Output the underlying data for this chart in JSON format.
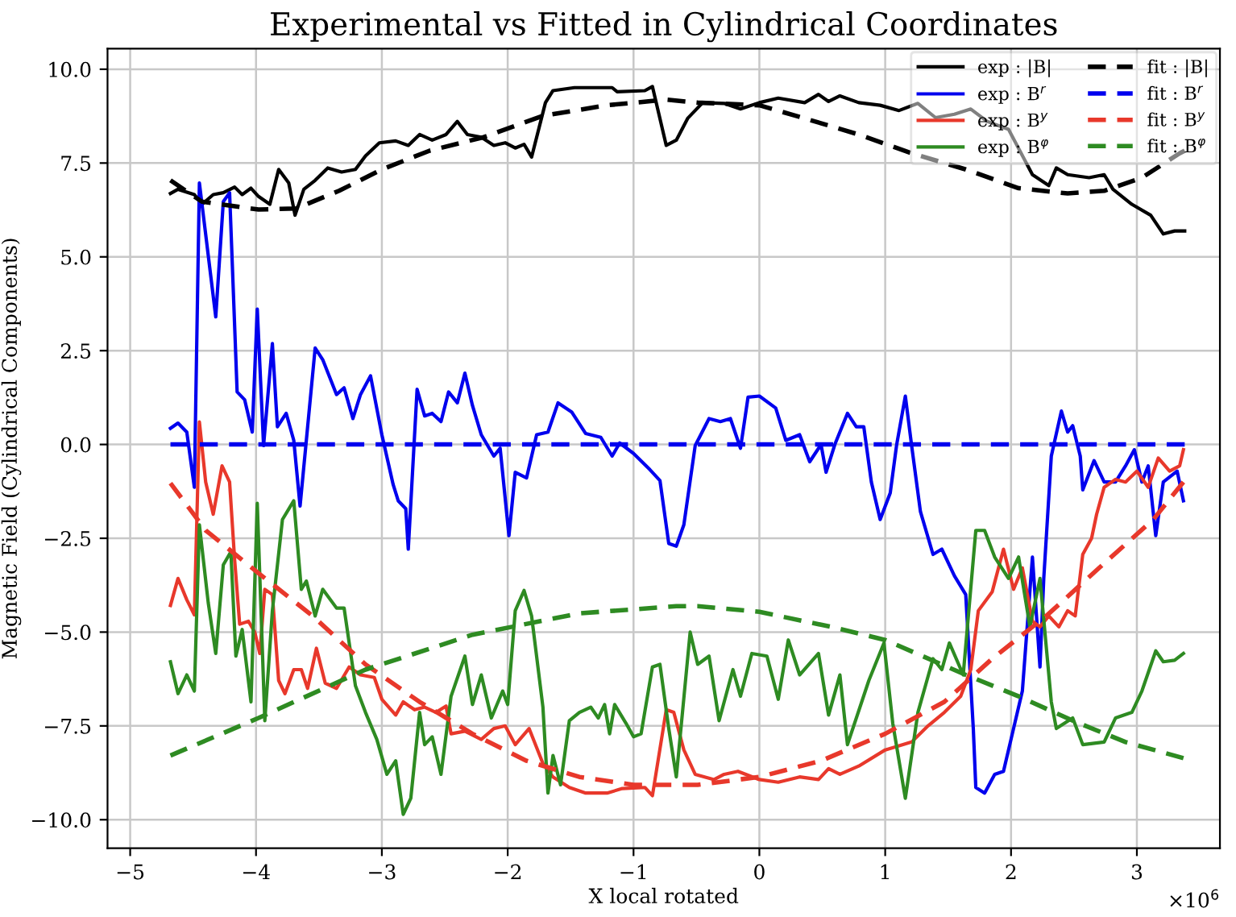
{
  "chart_data": {
    "type": "line",
    "title": "Experimental vs Fitted in Cylindrical Coordinates",
    "xlabel": "X local rotated",
    "ylabel": "Magnetic Field (Cylindrical Components)",
    "annotations": [
      "×10$^{6}$"
    ],
    "xlim": [
      -5.18,
      3.66
    ],
    "ylim": [
      -10.76,
      10.55
    ],
    "xticks": [
      {
        "value": -5,
        "label": "−5"
      },
      {
        "value": -4,
        "label": "−4"
      },
      {
        "value": -3,
        "label": "−3"
      },
      {
        "value": -2,
        "label": "−2"
      },
      {
        "value": -1,
        "label": "−1"
      },
      0,
      1,
      2,
      3
    ],
    "yticks": [
      {
        "value": -10,
        "label": "−10.0"
      },
      {
        "value": -7.5,
        "label": "−7.5"
      },
      {
        "value": -5,
        "label": "−5.0"
      },
      {
        "value": -2.5,
        "label": "−2.5"
      },
      {
        "value": 0,
        "label": "0.0"
      },
      {
        "value": 2.5,
        "label": "2.5"
      },
      {
        "value": 5,
        "label": "5.0"
      },
      {
        "value": 7.5,
        "label": "7.5"
      },
      {
        "value": 10,
        "label": "10.0"
      }
    ],
    "grid": true,
    "legend": "top right",
    "marker": "none",
    "series": [
      {
        "name": "exp : |B|",
        "color": "#000000",
        "line_style": "solid",
        "x": [
          -4.68,
          -4.62,
          -4.49,
          -4.43,
          -4.34,
          -4.26,
          -4.17,
          -4.11,
          -4.04,
          -3.98,
          -3.89,
          -3.82,
          -3.74,
          -3.69,
          -3.62,
          -3.53,
          -3.43,
          -3.32,
          -3.21,
          -3.13,
          -3.02,
          -2.89,
          -2.79,
          -2.7,
          -2.6,
          -2.49,
          -2.4,
          -2.32,
          -2.21,
          -2.11,
          -2.02,
          -1.94,
          -1.87,
          -1.81,
          -1.7,
          -1.64,
          -1.47,
          -1.17,
          -1.13,
          -0.91,
          -0.85,
          -0.74,
          -0.66,
          -0.57,
          -0.45,
          -0.28,
          -0.15,
          0,
          0.15,
          0.36,
          0.47,
          0.55,
          0.64,
          0.79,
          0.96,
          1.11,
          1.26,
          1.4,
          1.55,
          1.68,
          1.81,
          1.98,
          2.17,
          2.3,
          2.36,
          2.45,
          2.62,
          2.74,
          2.81,
          2.96,
          3.11,
          3.21,
          3.3,
          3.38
        ],
        "values": [
          6.69,
          6.8,
          6.66,
          6.4,
          6.66,
          6.71,
          6.86,
          6.66,
          6.83,
          6.61,
          6.4,
          7.33,
          6.97,
          6.11,
          6.8,
          7.04,
          7.37,
          7.26,
          7.33,
          7.69,
          8.04,
          8.09,
          7.97,
          8.26,
          8.11,
          8.26,
          8.61,
          8.26,
          8.19,
          7.97,
          8.04,
          7.9,
          8.0,
          7.66,
          9.11,
          9.43,
          9.51,
          9.51,
          9.4,
          9.43,
          9.54,
          7.97,
          8.11,
          8.69,
          9.11,
          9.09,
          8.94,
          9.11,
          9.23,
          9.11,
          9.33,
          9.14,
          9.29,
          9.11,
          9.04,
          8.9,
          9.09,
          8.71,
          8.8,
          8.94,
          8.61,
          8.4,
          7.19,
          6.9,
          7.37,
          7.19,
          7.11,
          7.19,
          6.8,
          6.4,
          6.11,
          5.61,
          5.69,
          5.69
        ]
      },
      {
        "name": "exp : B$^{r}$",
        "color": "#0000ee",
        "line_style": "solid",
        "x": [
          -4.68,
          -4.62,
          -4.55,
          -4.49,
          -4.45,
          -4.32,
          -4.26,
          -4.21,
          -4.15,
          -4.09,
          -4.03,
          -3.99,
          -3.94,
          -3.87,
          -3.83,
          -3.76,
          -3.7,
          -3.65,
          -3.53,
          -3.47,
          -3.36,
          -3.3,
          -3.23,
          -3.17,
          -3.09,
          -3.0,
          -2.91,
          -2.87,
          -2.81,
          -2.79,
          -2.72,
          -2.66,
          -2.6,
          -2.53,
          -2.47,
          -2.4,
          -2.34,
          -2.28,
          -2.21,
          -2.11,
          -2.06,
          -1.99,
          -1.94,
          -1.85,
          -1.77,
          -1.68,
          -1.6,
          -1.49,
          -1.38,
          -1.26,
          -1.17,
          -1.11,
          -1.0,
          -0.87,
          -0.79,
          -0.72,
          -0.66,
          -0.6,
          -0.51,
          -0.4,
          -0.31,
          -0.23,
          -0.15,
          -0.09,
          0.0,
          0.13,
          0.21,
          0.32,
          0.4,
          0.49,
          0.53,
          0.6,
          0.7,
          0.77,
          0.83,
          0.89,
          0.96,
          1.04,
          1.09,
          1.16,
          1.21,
          1.28,
          1.38,
          1.45,
          1.55,
          1.64,
          1.7,
          1.72,
          1.79,
          1.87,
          1.94,
          2.02,
          2.09,
          2.17,
          2.23,
          2.26,
          2.32,
          2.4,
          2.45,
          2.49,
          2.55,
          2.57,
          2.66,
          2.74,
          2.83,
          2.91,
          2.98,
          3.04,
          3.09,
          3.15,
          3.21,
          3.32,
          3.37
        ],
        "values": [
          0.43,
          0.57,
          0.33,
          -1.14,
          6.97,
          3.4,
          6.47,
          6.71,
          1.4,
          1.19,
          0.33,
          3.61,
          -0.03,
          2.69,
          0.47,
          0.83,
          0.11,
          -1.64,
          2.57,
          2.26,
          1.33,
          1.51,
          0.69,
          1.33,
          1.83,
          0.26,
          -1.07,
          -1.5,
          -1.71,
          -2.79,
          1.47,
          0.76,
          0.83,
          0.61,
          1.4,
          1.11,
          1.9,
          1.04,
          0.26,
          -0.31,
          -0.1,
          -2.43,
          -0.74,
          -0.89,
          0.26,
          0.33,
          1.11,
          0.86,
          0.29,
          0.19,
          -0.31,
          0.04,
          -0.24,
          -0.67,
          -0.96,
          -2.64,
          -2.71,
          -2.14,
          -0.03,
          0.69,
          0.61,
          0.69,
          -0.1,
          1.26,
          1.29,
          0.97,
          0.11,
          0.26,
          -0.46,
          0.0,
          -0.74,
          0.0,
          0.83,
          0.47,
          0.47,
          -1.0,
          -2.0,
          -1.29,
          -0.03,
          1.29,
          -0.03,
          -1.79,
          -2.93,
          -2.79,
          -3.5,
          -4.0,
          -7.57,
          -9.14,
          -9.29,
          -8.79,
          -8.71,
          -7.57,
          -6.57,
          -3.0,
          -5.93,
          -3.57,
          -0.31,
          0.89,
          0.33,
          0.5,
          -0.31,
          -1.21,
          -0.43,
          -1.0,
          -1.0,
          -0.57,
          -0.14,
          -1.0,
          -0.57,
          -2.43,
          -1.0,
          -0.71,
          -1.5
        ]
      },
      {
        "name": "exp : B$^{y}$",
        "color": "#e8382b",
        "line_style": "solid",
        "x": [
          -4.68,
          -4.62,
          -4.55,
          -4.49,
          -4.45,
          -4.4,
          -4.34,
          -4.27,
          -4.21,
          -4.17,
          -4.13,
          -4.06,
          -4.01,
          -3.97,
          -3.93,
          -3.87,
          -3.82,
          -3.77,
          -3.7,
          -3.64,
          -3.59,
          -3.52,
          -3.45,
          -3.36,
          -3.26,
          -3.17,
          -3.06,
          -3.0,
          -2.89,
          -2.83,
          -2.74,
          -2.66,
          -2.57,
          -2.49,
          -2.45,
          -2.34,
          -2.21,
          -2.11,
          -2.02,
          -1.94,
          -1.83,
          -1.72,
          -1.64,
          -1.51,
          -1.38,
          -1.21,
          -1.09,
          -0.91,
          -0.85,
          -0.74,
          -0.68,
          -0.6,
          -0.51,
          -0.36,
          -0.28,
          -0.17,
          0,
          0.15,
          0.32,
          0.47,
          0.55,
          0.64,
          0.79,
          1.0,
          1.21,
          1.34,
          1.47,
          1.6,
          1.68,
          1.74,
          1.85,
          1.94,
          2.02,
          2.09,
          2.17,
          2.23,
          2.3,
          2.38,
          2.45,
          2.51,
          2.57,
          2.64,
          2.68,
          2.74,
          2.83,
          2.91,
          3.0,
          3.09,
          3.17,
          3.26,
          3.34,
          3.37
        ],
        "values": [
          -4.29,
          -3.57,
          -4.14,
          -4.54,
          0.6,
          -1.0,
          -1.86,
          -0.57,
          -1.0,
          -3.07,
          -4.79,
          -4.71,
          -5.0,
          -5.57,
          -3.86,
          -4.0,
          -6.29,
          -6.64,
          -6.0,
          -6.0,
          -6.5,
          -5.43,
          -6.36,
          -6.5,
          -5.93,
          -6.14,
          -6.21,
          -6.79,
          -7.21,
          -6.86,
          -7.07,
          -7.0,
          -7.14,
          -6.97,
          -7.71,
          -7.64,
          -7.86,
          -7.57,
          -7.5,
          -8.0,
          -7.57,
          -8.5,
          -8.86,
          -9.14,
          -9.29,
          -9.29,
          -9.17,
          -9.14,
          -9.36,
          -7.07,
          -7.14,
          -8.14,
          -8.79,
          -8.93,
          -8.79,
          -8.71,
          -8.93,
          -9.0,
          -8.86,
          -8.93,
          -8.64,
          -8.79,
          -8.57,
          -8.14,
          -7.93,
          -7.5,
          -7.14,
          -6.71,
          -6.0,
          -4.43,
          -3.93,
          -2.79,
          -3.86,
          -3.29,
          -4.71,
          -4.86,
          -4.57,
          -4.86,
          -4.43,
          -4.57,
          -2.93,
          -2.5,
          -1.86,
          -1.14,
          -0.93,
          -1.0,
          -0.71,
          -1.14,
          -0.36,
          -0.71,
          -0.57,
          -0.14
        ]
      },
      {
        "name": "exp : B$^{φ}$",
        "color": "#2e8b22",
        "line_style": "solid",
        "x": [
          -4.68,
          -4.62,
          -4.55,
          -4.49,
          -4.45,
          -4.38,
          -4.32,
          -4.26,
          -4.2,
          -4.16,
          -4.11,
          -4.04,
          -3.99,
          -3.93,
          -3.87,
          -3.79,
          -3.7,
          -3.64,
          -3.6,
          -3.53,
          -3.47,
          -3.36,
          -3.3,
          -3.21,
          -3.13,
          -3.04,
          -2.96,
          -2.89,
          -2.83,
          -2.77,
          -2.7,
          -2.66,
          -2.6,
          -2.53,
          -2.45,
          -2.34,
          -2.28,
          -2.21,
          -2.13,
          -2.04,
          -2.0,
          -1.94,
          -1.87,
          -1.81,
          -1.72,
          -1.68,
          -1.64,
          -1.58,
          -1.51,
          -1.43,
          -1.34,
          -1.28,
          -1.23,
          -1.19,
          -1.15,
          -1.06,
          -1.0,
          -0.94,
          -0.85,
          -0.79,
          -0.72,
          -0.66,
          -0.55,
          -0.49,
          -0.4,
          -0.32,
          -0.21,
          -0.15,
          -0.06,
          0.06,
          0.15,
          0.23,
          0.32,
          0.47,
          0.55,
          0.64,
          0.7,
          0.87,
          0.99,
          1.06,
          1.16,
          1.26,
          1.38,
          1.45,
          1.51,
          1.62,
          1.72,
          1.79,
          1.87,
          1.98,
          2.06,
          2.15,
          2.23,
          2.32,
          2.36,
          2.49,
          2.57,
          2.74,
          2.83,
          2.96,
          3.04,
          3.15,
          3.21,
          3.3,
          3.37
        ],
        "values": [
          -5.79,
          -6.64,
          -6.14,
          -6.57,
          -2.14,
          -4.21,
          -5.57,
          -3.21,
          -2.86,
          -5.64,
          -4.93,
          -6.86,
          -1.57,
          -7.36,
          -4.43,
          -2.0,
          -1.5,
          -3.86,
          -3.64,
          -4.57,
          -3.86,
          -4.36,
          -4.36,
          -6.43,
          -7.14,
          -7.86,
          -8.79,
          -8.43,
          -9.86,
          -9.43,
          -7.14,
          -8.0,
          -7.79,
          -8.79,
          -6.71,
          -5.64,
          -6.93,
          -6.14,
          -7.29,
          -6.57,
          -6.93,
          -4.43,
          -3.89,
          -4.57,
          -7.0,
          -9.29,
          -8.29,
          -9.07,
          -7.36,
          -7.14,
          -7.0,
          -7.29,
          -6.93,
          -7.71,
          -6.93,
          -7.43,
          -7.79,
          -7.71,
          -5.93,
          -5.86,
          -7.57,
          -8.86,
          -5.0,
          -5.86,
          -5.64,
          -7.36,
          -6.0,
          -6.71,
          -5.57,
          -5.64,
          -6.79,
          -5.21,
          -6.14,
          -5.57,
          -7.21,
          -6.14,
          -8.0,
          -6.29,
          -5.29,
          -7.43,
          -9.43,
          -7.14,
          -5.71,
          -6.0,
          -5.29,
          -6.14,
          -2.29,
          -2.29,
          -3.0,
          -3.57,
          -3.0,
          -4.86,
          -3.57,
          -6.86,
          -7.57,
          -7.29,
          -8.0,
          -7.93,
          -7.29,
          -7.14,
          -6.57,
          -5.5,
          -5.79,
          -5.75,
          -5.57
        ]
      },
      {
        "name": "fit : |B|",
        "color": "#000000",
        "line_style": "dashed",
        "x": [
          -4.68,
          -4.43,
          -3.98,
          -3.68,
          -3.34,
          -3.0,
          -2.62,
          -2.19,
          -1.72,
          -1.21,
          -0.74,
          -0.49,
          0,
          0.36,
          0.79,
          1.21,
          1.64,
          2.06,
          2.45,
          2.74,
          3.04,
          3.34,
          3.38
        ],
        "values": [
          7.04,
          6.47,
          6.26,
          6.29,
          6.76,
          7.33,
          7.83,
          8.19,
          8.76,
          9.04,
          9.19,
          9.11,
          9.04,
          8.69,
          8.26,
          7.76,
          7.33,
          6.83,
          6.69,
          6.76,
          7.11,
          7.76,
          7.83
        ]
      },
      {
        "name": "fit : B$^{r}$",
        "color": "#0000ee",
        "line_style": "dashed",
        "x": [
          -4.68,
          3.38
        ],
        "values": [
          0,
          0
        ]
      },
      {
        "name": "fit : B$^{y}$",
        "color": "#e8382b",
        "line_style": "dashed",
        "x": [
          -4.68,
          -4.4,
          -3.98,
          -3.55,
          -3.13,
          -2.7,
          -2.28,
          -1.85,
          -1.43,
          -1.0,
          -0.66,
          -0.49,
          0,
          0.49,
          1.0,
          1.47,
          1.85,
          2.28,
          2.7,
          3.13,
          3.37
        ],
        "values": [
          -1.03,
          -2.29,
          -3.43,
          -4.57,
          -5.86,
          -6.86,
          -7.71,
          -8.43,
          -8.86,
          -9.07,
          -9.07,
          -9.07,
          -8.86,
          -8.43,
          -7.71,
          -6.86,
          -5.71,
          -4.57,
          -3.29,
          -2.0,
          -1.0
        ]
      },
      {
        "name": "fit : B$^{φ}$",
        "color": "#2e8b22",
        "line_style": "dashed",
        "x": [
          -4.68,
          -3.98,
          -3.13,
          -2.28,
          -1.43,
          -0.66,
          -0.49,
          0,
          0.57,
          1.0,
          1.64,
          2.06,
          2.49,
          2.91,
          3.37
        ],
        "values": [
          -8.29,
          -7.29,
          -6.0,
          -5.07,
          -4.5,
          -4.31,
          -4.31,
          -4.46,
          -4.86,
          -5.21,
          -6.14,
          -6.71,
          -7.36,
          -7.93,
          -8.36
        ]
      }
    ]
  }
}
